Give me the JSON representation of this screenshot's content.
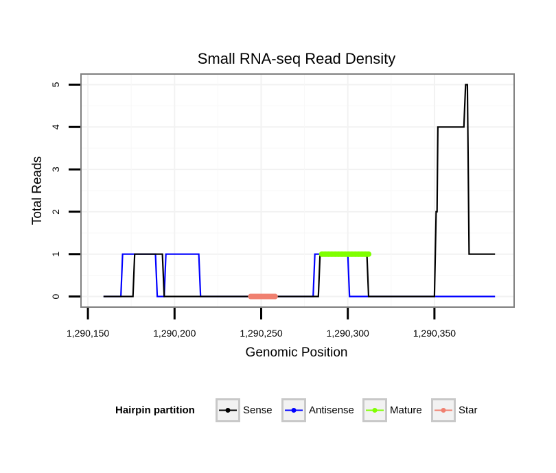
{
  "chart_data": {
    "type": "line",
    "title": "Small RNA-seq Read Density",
    "xlabel": "Genomic Position",
    "ylabel": "Total Reads",
    "xlim": [
      1290146,
      1290396
    ],
    "ylim": [
      -0.25,
      5.25
    ],
    "x_ticks": [
      1290150,
      1290200,
      1290250,
      1290300,
      1290350
    ],
    "x_tick_labels": [
      "1,290,150",
      "1,290,200",
      "1,290,250",
      "1,290,300",
      "1,290,350"
    ],
    "y_ticks": [
      0,
      1,
      2,
      3,
      4,
      5
    ],
    "y_tick_labels": [
      "0",
      "1",
      "2",
      "3",
      "4",
      "5"
    ],
    "grid": true,
    "legend": {
      "title": "Hairpin partition",
      "position": "bottom",
      "entries": [
        "Sense",
        "Antisense",
        "Mature",
        "Star"
      ]
    },
    "series": [
      {
        "name": "Antisense",
        "color": "#0000ff",
        "x": [
          1290159,
          1290169,
          1290170,
          1290189,
          1290190,
          1290194,
          1290195,
          1290214,
          1290215,
          1290280,
          1290281,
          1290300,
          1290301,
          1290385
        ],
        "y": [
          0,
          0,
          1,
          1,
          0,
          0,
          1,
          1,
          0,
          0,
          1,
          1,
          0,
          0
        ]
      },
      {
        "name": "Sense",
        "color": "#000000",
        "x": [
          1290159,
          1290176,
          1290177,
          1290193,
          1290194,
          1290283,
          1290284,
          1290311,
          1290312,
          1290350,
          1290351,
          1290351.5,
          1290352,
          1290367,
          1290368,
          1290369,
          1290370,
          1290385
        ],
        "y": [
          0,
          0,
          1,
          1,
          0,
          0,
          1,
          1,
          0,
          0,
          2,
          2,
          4,
          4,
          5,
          5,
          1,
          1
        ]
      },
      {
        "name": "Mature",
        "color": "#7fff00",
        "x": [
          1290285,
          1290312
        ],
        "y": [
          1,
          1
        ]
      },
      {
        "name": "Star",
        "color": "#f08070",
        "x": [
          1290244,
          1290258
        ],
        "y": [
          0,
          0
        ]
      }
    ]
  }
}
